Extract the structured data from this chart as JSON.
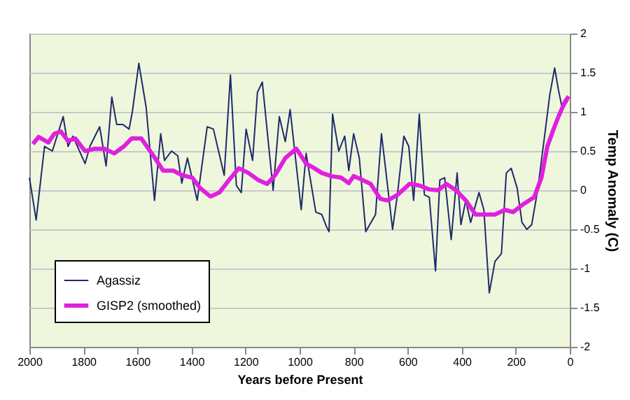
{
  "chart_data": {
    "type": "line",
    "xlabel": "Years before Present",
    "ylabel": "Temp Anomaly (C)",
    "xlim": [
      2000,
      0
    ],
    "xticks": [
      2000,
      1800,
      1600,
      1400,
      1200,
      1000,
      800,
      600,
      400,
      200,
      0
    ],
    "ylim": [
      -2,
      2
    ],
    "yticks": [
      -2,
      -1.5,
      -1,
      -0.5,
      0,
      0.5,
      1,
      1.5,
      2
    ],
    "grid": "y",
    "legend": "bottom left",
    "marker": "none",
    "line_style": "solid",
    "series": [
      {
        "name": "Agassiz",
        "color": "#1f2a6b",
        "x": [
          2000,
          1975,
          1944,
          1915,
          1875,
          1857,
          1839,
          1794,
          1776,
          1740,
          1716,
          1695,
          1677,
          1655,
          1631,
          1619,
          1595,
          1568,
          1537,
          1514,
          1500,
          1474,
          1451,
          1436,
          1415,
          1379,
          1342,
          1319,
          1279,
          1256,
          1234,
          1216,
          1198,
          1174,
          1156,
          1138,
          1098,
          1075,
          1053,
          1035,
          994,
          976,
          940,
          918,
          900,
          891,
          878,
          855,
          833,
          818,
          800,
          779,
          755,
          719,
          697,
          683,
          656,
          638,
          614,
          596,
          578,
          557,
          538,
          520,
          497,
          481,
          463,
          439,
          417,
          403,
          385,
          367,
          336,
          318,
          298,
          277,
          253,
          235,
          217,
          195,
          177,
          159,
          141,
          119,
          90,
          74,
          56,
          42,
          27,
          5
        ],
        "values": [
          0.16,
          -0.38,
          0.56,
          0.5,
          0.94,
          0.56,
          0.69,
          0.34,
          0.56,
          0.81,
          0.31,
          1.19,
          0.84,
          0.84,
          0.78,
          1.0,
          1.62,
          1.06,
          -0.13,
          0.72,
          0.38,
          0.5,
          0.44,
          0.09,
          0.41,
          -0.13,
          0.81,
          0.78,
          0.19,
          1.47,
          0.06,
          -0.03,
          0.78,
          0.38,
          1.25,
          1.38,
          0.0,
          0.94,
          0.62,
          1.03,
          -0.25,
          0.47,
          -0.28,
          -0.31,
          -0.47,
          -0.53,
          0.97,
          0.5,
          0.69,
          0.25,
          0.72,
          0.41,
          -0.53,
          -0.31,
          0.72,
          0.31,
          -0.5,
          -0.06,
          0.69,
          0.56,
          -0.13,
          0.97,
          -0.06,
          -0.09,
          -1.03,
          0.13,
          0.16,
          -0.63,
          0.22,
          -0.44,
          -0.13,
          -0.41,
          -0.03,
          -0.25,
          -1.31,
          -0.91,
          -0.81,
          0.22,
          0.28,
          0.03,
          -0.41,
          -0.5,
          -0.44,
          0.0,
          0.78,
          1.22,
          1.56,
          1.28,
          1.03,
          1.16
        ],
        "type": "line"
      },
      {
        "name": "GISP2 (smoothed)",
        "color": "#e020e0",
        "x": [
          1987,
          1966,
          1930,
          1908,
          1884,
          1857,
          1830,
          1794,
          1758,
          1722,
          1686,
          1650,
          1622,
          1586,
          1541,
          1505,
          1468,
          1433,
          1397,
          1369,
          1330,
          1297,
          1261,
          1225,
          1189,
          1153,
          1120,
          1089,
          1053,
          1012,
          976,
          945,
          918,
          882,
          846,
          818,
          800,
          773,
          737,
          701,
          674,
          638,
          593,
          557,
          520,
          488,
          457,
          421,
          385,
          349,
          313,
          277,
          240,
          210,
          177,
          132,
          105,
          83,
          60,
          42,
          18,
          4
        ],
        "values": [
          0.59,
          0.68,
          0.61,
          0.72,
          0.75,
          0.63,
          0.66,
          0.5,
          0.53,
          0.53,
          0.47,
          0.56,
          0.66,
          0.66,
          0.44,
          0.25,
          0.25,
          0.19,
          0.16,
          0.03,
          -0.08,
          -0.03,
          0.13,
          0.28,
          0.22,
          0.13,
          0.08,
          0.2,
          0.41,
          0.53,
          0.34,
          0.28,
          0.22,
          0.18,
          0.16,
          0.09,
          0.18,
          0.14,
          0.08,
          -0.11,
          -0.13,
          -0.06,
          0.08,
          0.06,
          0.01,
          0.0,
          0.08,
          0.0,
          -0.13,
          -0.31,
          -0.31,
          -0.31,
          -0.25,
          -0.28,
          -0.19,
          -0.09,
          0.16,
          0.56,
          0.78,
          0.94,
          1.13,
          1.2
        ],
        "type": "line"
      }
    ]
  }
}
